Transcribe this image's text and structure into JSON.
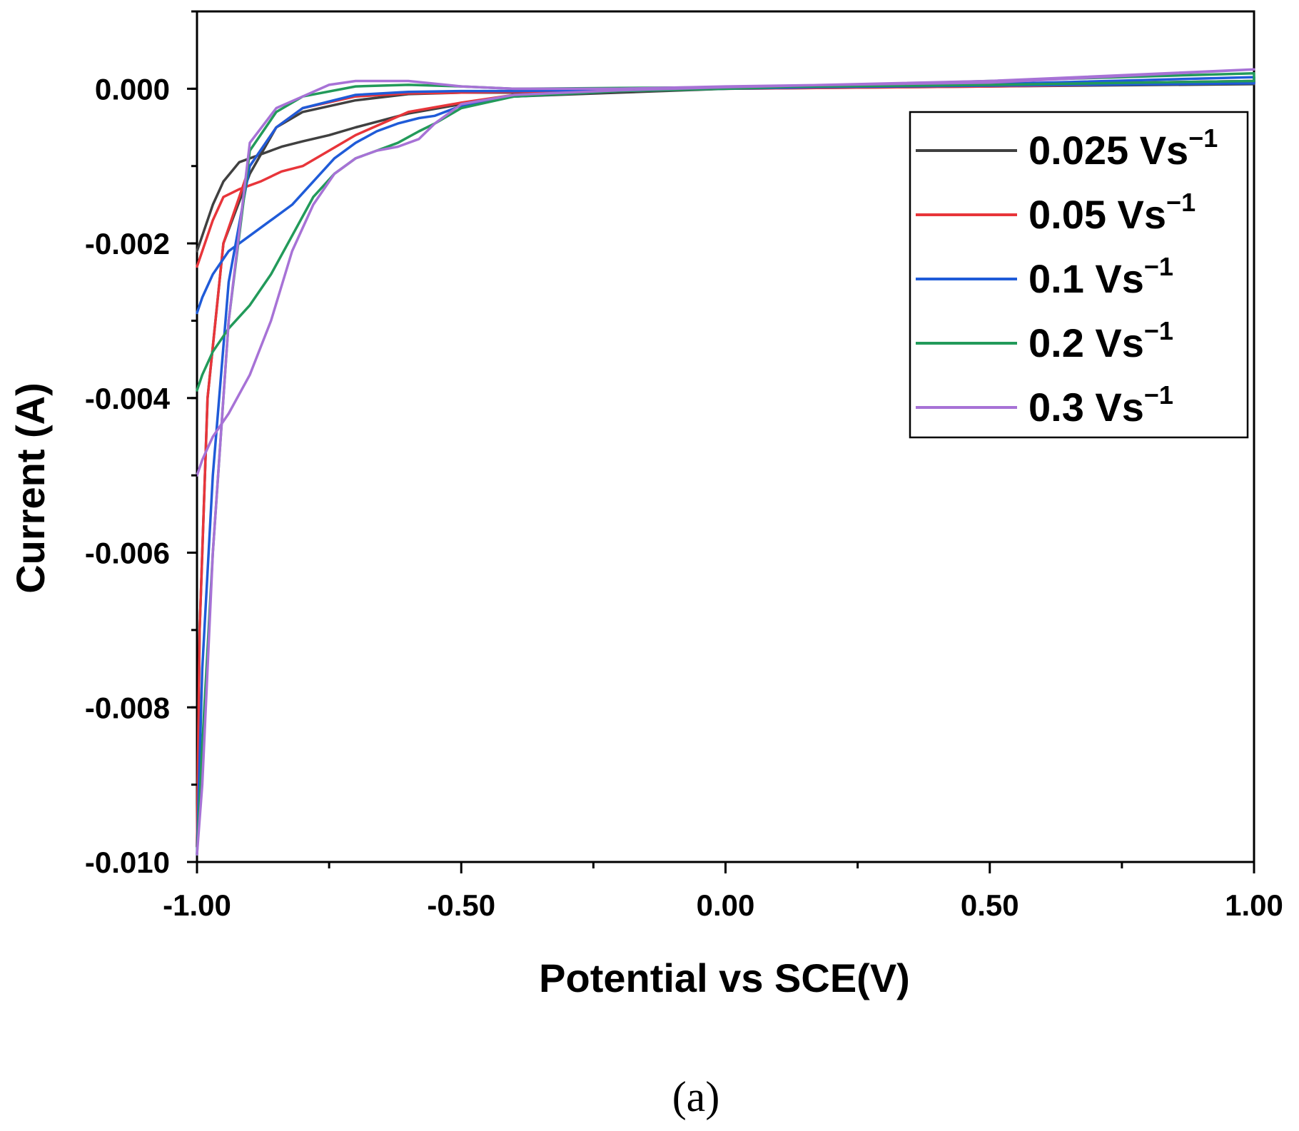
{
  "caption": "(a)",
  "chart_data": {
    "type": "line",
    "title": "",
    "xlabel": "Potential vs SCE(V)",
    "ylabel": "Current (A)",
    "xlim": [
      -1.0,
      1.0
    ],
    "ylim": [
      -0.01,
      0.001
    ],
    "x_ticks": [
      -1.0,
      -0.5,
      0.0,
      0.5,
      1.0
    ],
    "x_tick_labels": [
      "-1.00",
      "-0.50",
      "0.00",
      "0.50",
      "1.00"
    ],
    "y_ticks": [
      0.0,
      -0.002,
      -0.004,
      -0.006,
      -0.008,
      -0.01
    ],
    "y_tick_labels": [
      "0.000",
      "-0.002",
      "-0.004",
      "-0.006",
      "-0.008",
      "-0.010"
    ],
    "grid": false,
    "legend_position": "top-right",
    "series": [
      {
        "name": "0.025 Vs",
        "superscript": "−1",
        "color": "#404040",
        "x": [
          -1.0,
          -0.99,
          -0.97,
          -0.95,
          -0.92,
          -0.88,
          -0.84,
          -0.8,
          -0.75,
          -0.7,
          -0.6,
          -0.5,
          -0.4,
          -0.2,
          0.0,
          0.5,
          1.0,
          1.0,
          0.5,
          0.0,
          -0.2,
          -0.4,
          -0.5,
          -0.6,
          -0.7,
          -0.8,
          -0.85,
          -0.9,
          -0.95,
          -0.98,
          -0.995,
          -1.0
        ],
        "y": [
          -0.0021,
          -0.0019,
          -0.0015,
          -0.0012,
          -0.00095,
          -0.00085,
          -0.00075,
          -0.00068,
          -0.0006,
          -0.0005,
          -0.00032,
          -0.0002,
          -0.0001,
          -5e-05,
          0.0,
          3e-05,
          6e-05,
          0.0001,
          5e-05,
          2e-05,
          -3e-05,
          -5e-05,
          -5e-05,
          -7e-05,
          -0.00015,
          -0.0003,
          -0.0005,
          -0.0011,
          -0.002,
          -0.004,
          -0.007,
          -0.0098
        ]
      },
      {
        "name": "0.05 Vs",
        "superscript": "−1",
        "color": "#e8353a",
        "x": [
          -1.0,
          -0.99,
          -0.97,
          -0.95,
          -0.92,
          -0.88,
          -0.84,
          -0.8,
          -0.75,
          -0.7,
          -0.65,
          -0.6,
          -0.5,
          -0.4,
          -0.2,
          0.0,
          0.5,
          1.0,
          1.0,
          0.5,
          0.0,
          -0.2,
          -0.4,
          -0.5,
          -0.6,
          -0.7,
          -0.8,
          -0.85,
          -0.9,
          -0.95,
          -0.98,
          -0.995,
          -1.0
        ],
        "y": [
          -0.0023,
          -0.0021,
          -0.0017,
          -0.0014,
          -0.0013,
          -0.0012,
          -0.00107,
          -0.001,
          -0.0008,
          -0.0006,
          -0.00045,
          -0.0003,
          -0.00018,
          -8e-05,
          -3e-05,
          0.0,
          3e-05,
          8e-05,
          0.0001,
          5e-05,
          1e-05,
          -2e-05,
          -4e-05,
          -5e-05,
          -6e-05,
          -0.0001,
          -0.00025,
          -0.0005,
          -0.001,
          -0.002,
          -0.004,
          -0.007,
          -0.0098
        ]
      },
      {
        "name": "0.1 Vs",
        "superscript": "−1",
        "color": "#1f5bd8",
        "x": [
          -1.0,
          -0.99,
          -0.97,
          -0.94,
          -0.9,
          -0.86,
          -0.82,
          -0.78,
          -0.74,
          -0.7,
          -0.66,
          -0.62,
          -0.58,
          -0.55,
          -0.5,
          -0.4,
          -0.2,
          0.0,
          0.5,
          1.0,
          1.0,
          0.5,
          0.0,
          -0.2,
          -0.4,
          -0.5,
          -0.6,
          -0.7,
          -0.8,
          -0.85,
          -0.9,
          -0.94,
          -0.97,
          -0.99,
          -1.0
        ],
        "y": [
          -0.0029,
          -0.0027,
          -0.0024,
          -0.0021,
          -0.0019,
          -0.0017,
          -0.0015,
          -0.0012,
          -0.0009,
          -0.0007,
          -0.00055,
          -0.00045,
          -0.00038,
          -0.00035,
          -0.00022,
          -0.0001,
          -3e-05,
          0.0,
          6e-05,
          0.00015,
          7e-05,
          4e-05,
          1e-05,
          -1e-05,
          -3e-05,
          -3e-05,
          -4e-05,
          -8e-05,
          -0.00025,
          -0.0005,
          -0.001,
          -0.0025,
          -0.005,
          -0.0075,
          -0.0099
        ]
      },
      {
        "name": "0.2 Vs",
        "superscript": "−1",
        "color": "#229a5a",
        "x": [
          -1.0,
          -0.99,
          -0.97,
          -0.94,
          -0.9,
          -0.86,
          -0.82,
          -0.78,
          -0.74,
          -0.7,
          -0.66,
          -0.62,
          -0.58,
          -0.55,
          -0.5,
          -0.4,
          -0.2,
          0.0,
          0.5,
          1.0,
          1.0,
          0.5,
          0.0,
          -0.2,
          -0.4,
          -0.5,
          -0.6,
          -0.7,
          -0.8,
          -0.85,
          -0.9,
          -0.94,
          -0.97,
          -0.99,
          -1.0
        ],
        "y": [
          -0.0039,
          -0.0037,
          -0.0034,
          -0.0031,
          -0.0028,
          -0.0024,
          -0.0019,
          -0.0014,
          -0.0011,
          -0.0009,
          -0.0008,
          -0.0007,
          -0.00055,
          -0.00045,
          -0.00025,
          -0.0001,
          -3e-05,
          0.0,
          0.0001,
          0.0002,
          0.0001,
          5e-05,
          2e-05,
          1e-05,
          0.0,
          3e-05,
          5e-05,
          3e-05,
          -0.0001,
          -0.0003,
          -0.0008,
          -0.003,
          -0.006,
          -0.0085,
          -0.0099
        ]
      },
      {
        "name": "0.3 Vs",
        "superscript": "−1",
        "color": "#a772d6",
        "x": [
          -1.0,
          -0.99,
          -0.97,
          -0.94,
          -0.9,
          -0.86,
          -0.82,
          -0.78,
          -0.74,
          -0.7,
          -0.66,
          -0.62,
          -0.58,
          -0.55,
          -0.5,
          -0.4,
          -0.2,
          0.0,
          0.5,
          1.0,
          1.0,
          0.5,
          0.0,
          -0.2,
          -0.4,
          -0.5,
          -0.6,
          -0.65,
          -0.7,
          -0.75,
          -0.8,
          -0.85,
          -0.9,
          -0.94,
          -0.97,
          -0.99,
          -1.0
        ],
        "y": [
          -0.005,
          -0.0048,
          -0.0045,
          -0.0042,
          -0.0037,
          -0.003,
          -0.0021,
          -0.0015,
          -0.0011,
          -0.0009,
          -0.0008,
          -0.00075,
          -0.00065,
          -0.00045,
          -0.0002,
          -8e-05,
          -2e-05,
          2e-05,
          0.0001,
          0.00025,
          0.00025,
          8e-05,
          3e-05,
          0.0,
          0.0,
          3e-05,
          0.0001,
          0.0001,
          0.0001,
          5e-05,
          -0.0001,
          -0.00025,
          -0.0007,
          -0.003,
          -0.006,
          -0.009,
          -0.0099
        ]
      }
    ]
  }
}
